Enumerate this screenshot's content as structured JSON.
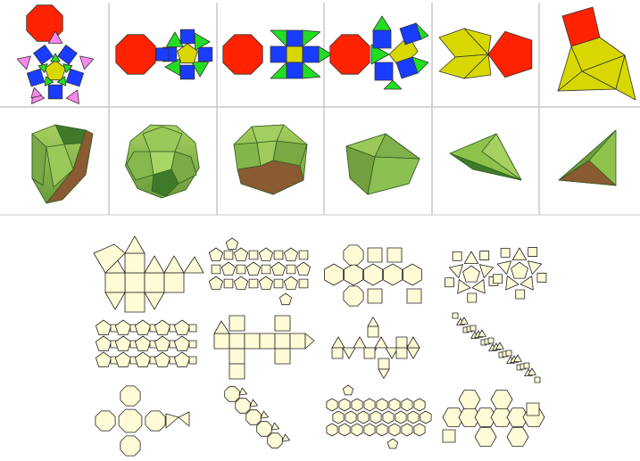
{
  "palette": {
    "background": "#ffffff",
    "cell_background": "#ffffff",
    "grid_line": "#c8c8c8",
    "octagon_red": "#ff2200",
    "square_blue": "#1a3cff",
    "triangle_green": "#22dd22",
    "triangle_pink": "#ff88ee",
    "pentagon_yellow": "#d8d800",
    "solid_green_light": "#8fc24a",
    "solid_green_dark": "#3f7a2a",
    "solid_brown": "#8a5a32",
    "outline": "#333333",
    "net_fill": "#fffbd6",
    "net_stroke": "#222222"
  },
  "panels": [
    {
      "name": "panel-1",
      "net": "octagon-pentagon-squares-pink-triangles",
      "solid": "half-dome"
    },
    {
      "name": "panel-2",
      "net": "octagon-pentagon-squares-green-triangles",
      "solid": "rounded-polyhedron"
    },
    {
      "name": "panel-3",
      "net": "octagon-square-cross",
      "solid": "squat-polyhedron"
    },
    {
      "name": "panel-4",
      "net": "octagon-triangle-squares",
      "solid": "pyramid-like"
    },
    {
      "name": "panel-5",
      "net": "pentagon-yellow-triangles",
      "solid": "flat-wedge"
    },
    {
      "name": "panel-6",
      "net": "square-yellow-triangles",
      "solid": "tetrahedron"
    }
  ],
  "bottom_nets": [
    "net-cuboctahedron",
    "net-snub-cluster",
    "net-truncated-octahedral",
    "net-pinwheel",
    "net-pentagonal-cluster",
    "net-prism-strip",
    "net-triangle-square-zigzag",
    "net-diagonal-dense",
    "net-octagon-cross",
    "net-diagonal-octagons",
    "net-hexagon-band",
    "net-large-hexagons"
  ]
}
